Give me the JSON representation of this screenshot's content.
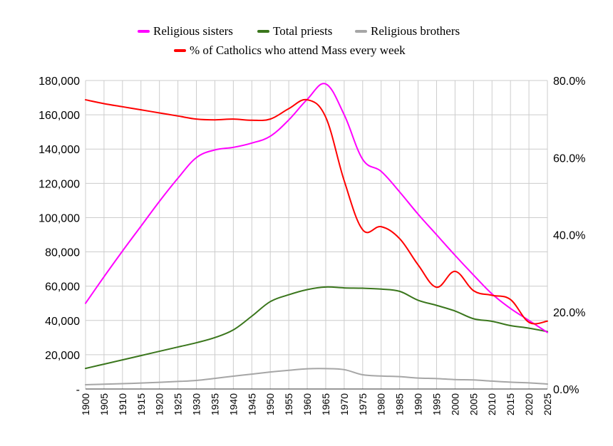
{
  "chart_data": {
    "type": "line",
    "title": "",
    "xlabel": "",
    "ylabel": "",
    "x": [
      1900,
      1905,
      1910,
      1915,
      1920,
      1925,
      1930,
      1935,
      1940,
      1945,
      1950,
      1955,
      1960,
      1965,
      1970,
      1975,
      1980,
      1985,
      1990,
      1995,
      2000,
      2005,
      2010,
      2015,
      2020,
      2025
    ],
    "x_tick_labels": [
      "1900",
      "1905",
      "1910",
      "1915",
      "1920",
      "1925",
      "1930",
      "1935",
      "1940",
      "1945",
      "1950",
      "1955",
      "1960",
      "1965",
      "1970",
      "1975",
      "1980",
      "1985",
      "1990",
      "1995",
      "2000",
      "2005",
      "2010",
      "2015",
      "2020",
      "2025"
    ],
    "ylim_left": [
      0,
      180000
    ],
    "ylim_right": [
      0,
      80
    ],
    "y_ticks_left": [
      0,
      20000,
      40000,
      60000,
      80000,
      100000,
      120000,
      140000,
      160000,
      180000
    ],
    "y_tick_labels_left": [
      "-",
      "20,000",
      "40,000",
      "60,000",
      "80,000",
      "100,000",
      "120,000",
      "140,000",
      "160,000",
      "180,000"
    ],
    "y_ticks_right": [
      0,
      20,
      40,
      60,
      80
    ],
    "y_tick_labels_right": [
      "0.0%",
      "20.0%",
      "40.0%",
      "60.0%",
      "80.0%"
    ],
    "grid": true,
    "legend_position": "top-center",
    "series": [
      {
        "name": "Religious sisters",
        "color": "#ff00ff",
        "axis": "left",
        "values": [
          50000,
          65500,
          80500,
          95000,
          109500,
          123000,
          135000,
          139500,
          141000,
          143500,
          147500,
          157000,
          169000,
          178000,
          160000,
          134000,
          127000,
          115000,
          102000,
          90000,
          78000,
          66500,
          55500,
          47000,
          40000,
          33000
        ]
      },
      {
        "name": "Total priests",
        "color": "#3a761c",
        "axis": "left",
        "values": [
          12000,
          14500,
          17000,
          19500,
          22000,
          24500,
          27000,
          30000,
          34500,
          42500,
          51000,
          55000,
          58000,
          59500,
          59000,
          58800,
          58300,
          57000,
          51800,
          48800,
          45500,
          41000,
          39500,
          37000,
          35500,
          33500
        ]
      },
      {
        "name": "Religious brothers",
        "color": "#a6a6a6",
        "axis": "left",
        "values": [
          2500,
          2800,
          3100,
          3500,
          3900,
          4400,
          5000,
          6200,
          7500,
          8700,
          9900,
          10900,
          11800,
          11900,
          11300,
          8300,
          7600,
          7200,
          6400,
          6100,
          5500,
          5300,
          4600,
          4000,
          3600,
          2900
        ]
      },
      {
        "name": "% of Catholics who attend Mass every week",
        "color": "#ff0000",
        "axis": "right",
        "values": [
          75.0,
          74.0,
          73.2,
          72.4,
          71.6,
          70.8,
          70.0,
          69.8,
          70.0,
          69.7,
          70.0,
          72.7,
          75.0,
          70.5,
          54.0,
          41.3,
          42.1,
          39.0,
          32.2,
          26.4,
          30.5,
          25.5,
          24.3,
          23.2,
          17.3,
          17.6
        ]
      }
    ]
  }
}
